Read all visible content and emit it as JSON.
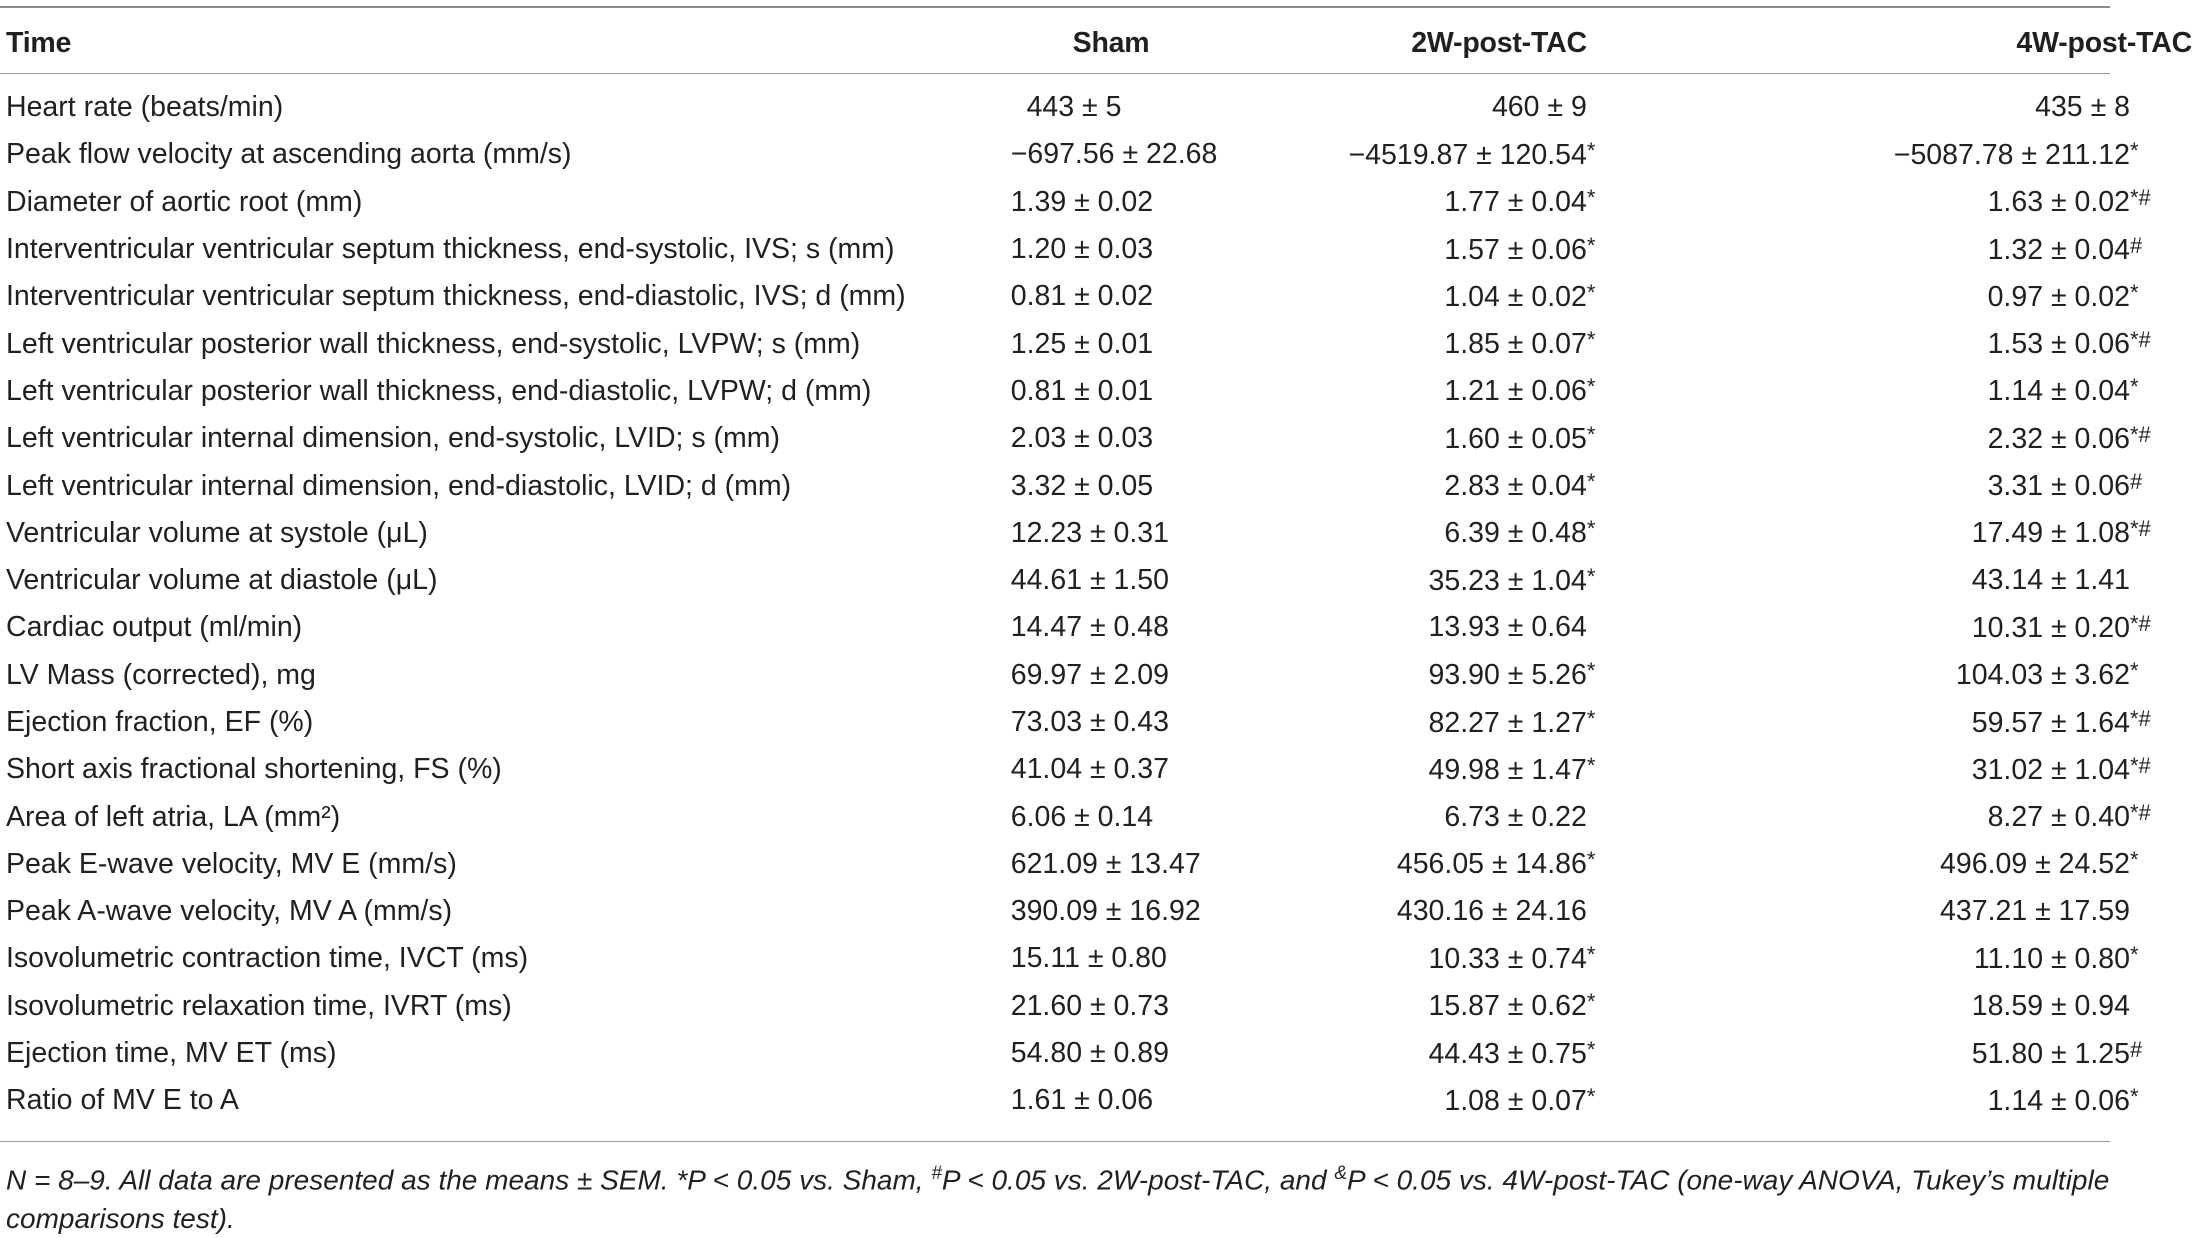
{
  "table": {
    "headers": {
      "label": "Time",
      "sham": "Sham",
      "w2": "2W-post-TAC",
      "w4": "4W-post-TAC"
    },
    "rows": [
      {
        "label": "Heart rate (beats/min)",
        "sham": "443 ± 5",
        "w2": "460 ± 9",
        "w2_mark": "",
        "w4": "435 ± 8",
        "w4_mark": ""
      },
      {
        "label": "Peak flow velocity at ascending aorta (mm/s)",
        "sham": "−697.56 ± 22.68",
        "w2": "−4519.87 ± 120.54",
        "w2_mark": "*",
        "w4": "−5087.78 ± 211.12",
        "w4_mark": "*"
      },
      {
        "label": "Diameter of aortic root (mm)",
        "sham": "1.39 ± 0.02",
        "w2": "1.77 ± 0.04",
        "w2_mark": "*",
        "w4": "1.63 ± 0.02",
        "w4_mark": "*#"
      },
      {
        "label": "Interventricular ventricular septum thickness, end-systolic, IVS; s (mm)",
        "sham": "1.20 ± 0.03",
        "w2": "1.57 ± 0.06",
        "w2_mark": "*",
        "w4": "1.32 ± 0.04",
        "w4_mark": "#"
      },
      {
        "label": "Interventricular ventricular septum thickness, end-diastolic, IVS; d (mm)",
        "sham": "0.81 ± 0.02",
        "w2": "1.04 ± 0.02",
        "w2_mark": "*",
        "w4": "0.97 ± 0.02",
        "w4_mark": "*"
      },
      {
        "label": "Left ventricular posterior wall thickness, end-systolic, LVPW; s (mm)",
        "sham": "1.25 ± 0.01",
        "w2": "1.85 ± 0.07",
        "w2_mark": "*",
        "w4": "1.53 ± 0.06",
        "w4_mark": "*#"
      },
      {
        "label": "Left ventricular posterior wall thickness, end-diastolic, LVPW; d (mm)",
        "sham": "0.81 ± 0.01",
        "w2": "1.21 ± 0.06",
        "w2_mark": "*",
        "w4": "1.14 ± 0.04",
        "w4_mark": "*"
      },
      {
        "label": "Left ventricular internal dimension, end-systolic, LVID; s (mm)",
        "sham": "2.03 ± 0.03",
        "w2": "1.60 ± 0.05",
        "w2_mark": "*",
        "w4": "2.32 ± 0.06",
        "w4_mark": "*#"
      },
      {
        "label": "Left ventricular internal dimension, end-diastolic, LVID; d (mm)",
        "sham": "3.32 ± 0.05",
        "w2": "2.83 ± 0.04",
        "w2_mark": "*",
        "w4": "3.31 ± 0.06",
        "w4_mark": "#"
      },
      {
        "label": "Ventricular volume at systole (μL)",
        "sham": "12.23 ± 0.31",
        "w2": "6.39 ± 0.48",
        "w2_mark": "*",
        "w4": "17.49 ± 1.08",
        "w4_mark": "*#"
      },
      {
        "label": "Ventricular volume at diastole (μL)",
        "sham": "44.61 ± 1.50",
        "w2": "35.23 ± 1.04",
        "w2_mark": "*",
        "w4": "43.14 ± 1.41",
        "w4_mark": ""
      },
      {
        "label": "Cardiac output (ml/min)",
        "sham": "14.47 ± 0.48",
        "w2": "13.93 ± 0.64",
        "w2_mark": "",
        "w4": "10.31 ± 0.20",
        "w4_mark": "*#"
      },
      {
        "label": "LV Mass (corrected), mg",
        "sham": "69.97 ± 2.09",
        "w2": "93.90 ± 5.26",
        "w2_mark": "*",
        "w4": "104.03 ± 3.62",
        "w4_mark": "*"
      },
      {
        "label": "Ejection fraction, EF (%)",
        "sham": "73.03 ± 0.43",
        "w2": "82.27 ± 1.27",
        "w2_mark": "*",
        "w4": "59.57 ± 1.64",
        "w4_mark": "*#"
      },
      {
        "label": "Short axis fractional shortening, FS (%)",
        "sham": "41.04 ± 0.37",
        "w2": "49.98 ± 1.47",
        "w2_mark": "*",
        "w4": "31.02 ± 1.04",
        "w4_mark": "*#"
      },
      {
        "label": "Area of left atria, LA (mm²)",
        "sham": "6.06 ± 0.14",
        "w2": "6.73 ± 0.22",
        "w2_mark": "",
        "w4": "8.27 ± 0.40",
        "w4_mark": "*#"
      },
      {
        "label": "Peak E-wave velocity, MV E (mm/s)",
        "sham": "621.09 ± 13.47",
        "w2": "456.05 ± 14.86",
        "w2_mark": "*",
        "w4": "496.09 ± 24.52",
        "w4_mark": "*"
      },
      {
        "label": "Peak A-wave velocity, MV A (mm/s)",
        "sham": "390.09 ± 16.92",
        "w2": "430.16 ± 24.16",
        "w2_mark": "",
        "w4": "437.21 ± 17.59",
        "w4_mark": ""
      },
      {
        "label": "Isovolumetric contraction time, IVCT (ms)",
        "sham": "15.11 ± 0.80",
        "w2": "10.33 ± 0.74",
        "w2_mark": "*",
        "w4": "11.10 ± 0.80",
        "w4_mark": "*"
      },
      {
        "label": "Isovolumetric relaxation time, IVRT (ms)",
        "sham": "21.60 ± 0.73",
        "w2": "15.87 ± 0.62",
        "w2_mark": "*",
        "w4": "18.59 ± 0.94",
        "w4_mark": ""
      },
      {
        "label": "Ejection time, MV ET (ms)",
        "sham": "54.80 ± 0.89",
        "w2": "44.43 ± 0.75",
        "w2_mark": "*",
        "w4": "51.80 ± 1.25",
        "w4_mark": "#"
      },
      {
        "label": "Ratio of MV E to A",
        "sham": "1.61 ± 0.06",
        "w2": "1.08 ± 0.07",
        "w2_mark": "*",
        "w4": "1.14 ± 0.06",
        "w4_mark": "*"
      }
    ]
  },
  "footnote": {
    "part1": "N = 8–9. All data are presented as the means ± SEM. *P < 0.05 vs. Sham, ",
    "sup1": "#",
    "part2": "P < 0.05 vs. 2W-post-TAC, and ",
    "sup2": "&",
    "part3": "P < 0.05 vs. 4W-post-TAC (one-way ANOVA, Tukey’s multiple comparisons test)."
  }
}
